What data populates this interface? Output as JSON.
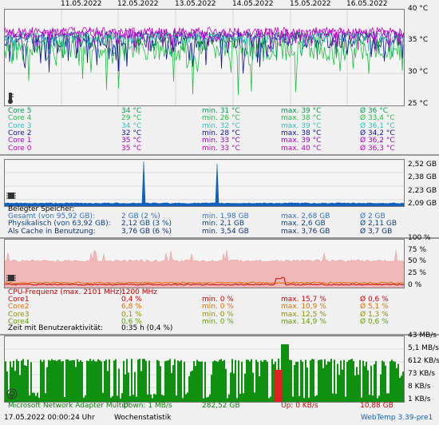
{
  "temp_panel": {
    "dates": [
      "11.05.2022",
      "12.05.2022",
      "13.05.2022",
      "14.05.2022",
      "15.05.2022",
      "16.05.2022"
    ],
    "y_labels": [
      "40 °C",
      "35 °C",
      "30 °C",
      "25 °C"
    ],
    "cores": [
      {
        "name": "Core 5",
        "cur": "34 °C",
        "min": "min. 31 °C",
        "max": "max. 39 °C",
        "avg": "Ø 36 °C",
        "color": "#00a050"
      },
      {
        "name": "Core 4",
        "cur": "29 °C",
        "min": "min. 26 °C",
        "max": "max. 38 °C",
        "avg": "Ø 33,4 °C",
        "color": "#20c040"
      },
      {
        "name": "Core 3",
        "cur": "34 °C",
        "min": "min. 32 °C",
        "max": "max. 39 °C",
        "avg": "Ø 36,1 °C",
        "color": "#30c0c0"
      },
      {
        "name": "Core 2",
        "cur": "32 °C",
        "min": "min. 28 °C",
        "max": "max. 38 °C",
        "avg": "Ø 34,2 °C",
        "color": "#1010a0"
      },
      {
        "name": "Core 1",
        "cur": "35 °C",
        "min": "min. 33 °C",
        "max": "max. 39 °C",
        "avg": "Ø 36,2 °C",
        "color": "#a000d0"
      },
      {
        "name": "Core 0",
        "cur": "35 °C",
        "min": "min. 33 °C",
        "max": "max. 40 °C",
        "avg": "Ø 36,3 °C",
        "color": "#c000c0"
      }
    ]
  },
  "mem_panel": {
    "y_labels": [
      "2,52 GB",
      "2,38 GB",
      "2,23 GB",
      "2,09 GB"
    ],
    "title": "Belegter Speicher:",
    "rows": [
      {
        "name": "Gesamt (von 95,92 GB):",
        "cur": "2 GB (2 %)",
        "min": "min. 1,98 GB",
        "max": "max. 2,68 GB",
        "avg": "Ø 2 GB",
        "color": "#3070c0"
      },
      {
        "name": "Physikalisch (von 63,92 GB):",
        "cur": "2,12 GB (3 %)",
        "min": "min. 2,1 GB",
        "max": "max. 2,6 GB",
        "avg": "Ø 2,11 GB",
        "color": "#104080"
      },
      {
        "name": "Als Cache in Benutzung:",
        "cur": "3,76 GB (6 %)",
        "min": "min. 3,54 GB",
        "max": "max. 3,76 GB",
        "avg": "Ø 3,7 GB",
        "color": "#103070"
      }
    ]
  },
  "cpu_panel": {
    "y_labels": [
      "100 %",
      "75 %",
      "50 %",
      "25 %",
      "0 %"
    ],
    "freq_label": "CPU-Frequenz (max. 2101 MHz):",
    "freq_value": "1200 MHz",
    "rows": [
      {
        "name": "Core1",
        "cur": "0,4 %",
        "min": "min. 0 %",
        "max": "max. 15,7 %",
        "avg": "Ø 0,6 %",
        "color": "#d00000"
      },
      {
        "name": "Core2",
        "cur": "6,8 %",
        "min": "min. 0 %",
        "max": "max. 10,9 %",
        "avg": "Ø 5,1 %",
        "color": "#e07000"
      },
      {
        "name": "Core3",
        "cur": "0,1 %",
        "min": "min. 0 %",
        "max": "max. 12,5 %",
        "avg": "Ø 1,3 %",
        "color": "#909000"
      },
      {
        "name": "Core4",
        "cur": "0,6 %",
        "min": "min. 0 %",
        "max": "max. 14,9 %",
        "avg": "Ø 0,6 %",
        "color": "#60a000"
      }
    ],
    "activity_label": "Zeit mit Benutzeraktivität:",
    "activity_value": "0:35 h (0,4 %)"
  },
  "net_panel": {
    "y_labels": [
      "43 MB/s",
      "5,1 MB/s",
      "612 KB/s",
      "73 KB/s",
      "8 KB/s",
      "1 KB/s"
    ],
    "adapter": "Microsoft Network Adapter Multipl",
    "down": "Down: 1 MB/s",
    "down_total": "282,52 GB",
    "up": "Up: 0 KB/s",
    "up_total": "10,88 GB"
  },
  "footer": {
    "timestamp": "17.05.2022 00:00:24 Uhr",
    "stats_link": "Wochenstatistik",
    "brand": "WebTemp 3.39-pre1"
  },
  "colors": {
    "panel_bg": "#f0f0f0",
    "mem_line": "#1060c0",
    "cpu_fill": "#f0b8b8",
    "net_down": "#109010",
    "net_up": "#e02020"
  }
}
